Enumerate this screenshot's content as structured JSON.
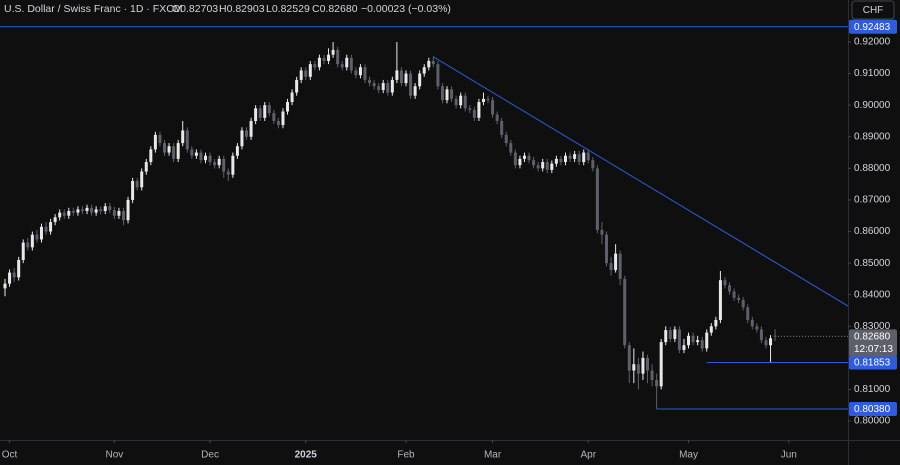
{
  "chart_data": {
    "type": "candlestick",
    "title": "U.S. Dollar / Swiss Franc · 1D · FXCM",
    "legend_ohlc": [
      "O0.82703",
      "H0.82903",
      "L0.82529",
      "C0.82680"
    ],
    "change": "−0.00023 (−0.03%)",
    "currency": "CHF",
    "countdown": "12:07:13",
    "last_price_label": "0.82680",
    "up_color": "#e8e8e8",
    "down_color": "#5d606b",
    "level_color": "#2f5be0",
    "xlim": [
      -1.1,
      185
    ],
    "ylim": [
      0.794,
      0.9333
    ],
    "xticks": [
      {
        "value": 1,
        "label": "Oct"
      },
      {
        "value": 24,
        "label": "Nov"
      },
      {
        "value": 45,
        "label": "Dec"
      },
      {
        "value": 66,
        "label": "2025"
      },
      {
        "value": 88,
        "label": "Feb"
      },
      {
        "value": 107,
        "label": "Mar"
      },
      {
        "value": 128,
        "label": "Apr"
      },
      {
        "value": 150,
        "label": "May"
      },
      {
        "value": 172,
        "label": "Jun"
      }
    ],
    "yticks": [
      {
        "value": 0.8,
        "label": "0.80000"
      },
      {
        "value": 0.81,
        "label": "0.81000"
      },
      {
        "value": 0.83,
        "label": "0.83000"
      },
      {
        "value": 0.84,
        "label": "0.84000"
      },
      {
        "value": 0.85,
        "label": "0.85000"
      },
      {
        "value": 0.86,
        "label": "0.86000"
      },
      {
        "value": 0.87,
        "label": "0.87000"
      },
      {
        "value": 0.88,
        "label": "0.88000"
      },
      {
        "value": 0.89,
        "label": "0.89000"
      },
      {
        "value": 0.9,
        "label": "0.90000"
      },
      {
        "value": 0.91,
        "label": "0.91000"
      },
      {
        "value": 0.92,
        "label": "0.92000"
      }
    ],
    "levels": [
      {
        "price": {
          "value": 0.92483,
          "label": "0.92483"
        }
      },
      {
        "price": {
          "value": 0.81853,
          "label": "0.81853"
        },
        "start": 154
      },
      {
        "price": {
          "value": 0.8038,
          "label": "0.80380"
        },
        "start": 143
      }
    ],
    "trendline": {
      "x": [
        94,
        185
      ],
      "y": [
        0.9153,
        0.8364
      ]
    },
    "open": [
      0.842,
      0.8435,
      0.847,
      0.8455,
      0.851,
      0.8565,
      0.855,
      0.859,
      0.8575,
      0.8615,
      0.86,
      0.863,
      0.8645,
      0.866,
      0.865,
      0.8665,
      0.866,
      0.867,
      0.8665,
      0.8675,
      0.866,
      0.867,
      0.8665,
      0.868,
      0.8668,
      0.865,
      0.8665,
      0.8636,
      0.87,
      0.876,
      0.874,
      0.879,
      0.882,
      0.886,
      0.8906,
      0.888,
      0.885,
      0.887,
      0.883,
      0.888,
      0.892,
      0.886,
      0.884,
      0.885,
      0.8826,
      0.884,
      0.882,
      0.881,
      0.883,
      0.879,
      0.878,
      0.884,
      0.887,
      0.892,
      0.89,
      0.895,
      0.899,
      0.896,
      0.9,
      0.8975,
      0.895,
      0.8937,
      0.898,
      0.901,
      0.904,
      0.908,
      0.911,
      0.909,
      0.913,
      0.912,
      0.915,
      0.914,
      0.916,
      0.9175,
      0.913,
      0.912,
      0.915,
      0.911,
      0.9095,
      0.912,
      0.908,
      0.907,
      0.906,
      0.9048,
      0.907,
      0.904,
      0.908,
      0.911,
      0.907,
      0.91,
      0.903,
      0.906,
      0.91,
      0.912,
      0.914,
      0.913,
      0.906,
      0.9016,
      0.905,
      0.902,
      0.9,
      0.903,
      0.899,
      0.8985,
      0.896,
      0.901,
      0.902,
      0.9016,
      0.897,
      0.895,
      0.8906,
      0.888,
      0.885,
      0.881,
      0.883,
      0.884,
      0.8826,
      0.881,
      0.88,
      0.882,
      0.8795,
      0.8815,
      0.883,
      0.882,
      0.884,
      0.883,
      0.8845,
      0.882,
      0.885,
      0.8826,
      0.88,
      0.8605,
      0.859,
      0.85,
      0.8478,
      0.853,
      0.845,
      0.824,
      0.816,
      0.818,
      0.815,
      0.82,
      0.816,
      0.813,
      0.811,
      0.825,
      0.8288,
      0.826,
      0.829,
      0.8225,
      0.824,
      0.827,
      0.825,
      0.8256,
      0.823,
      0.828,
      0.83,
      0.832,
      0.8446,
      0.843,
      0.841,
      0.839,
      0.8383,
      0.836,
      0.832,
      0.83,
      0.829,
      0.8256,
      0.824,
      0.82703
    ],
    "high": [
      0.845,
      0.848,
      0.8485,
      0.852,
      0.8575,
      0.858,
      0.86,
      0.8605,
      0.8625,
      0.863,
      0.864,
      0.8655,
      0.867,
      0.867,
      0.8675,
      0.8675,
      0.868,
      0.868,
      0.8685,
      0.8685,
      0.868,
      0.868,
      0.869,
      0.869,
      0.8678,
      0.8675,
      0.8675,
      0.871,
      0.877,
      0.877,
      0.88,
      0.883,
      0.887,
      0.8916,
      0.8916,
      0.889,
      0.888,
      0.888,
      0.889,
      0.895,
      0.893,
      0.887,
      0.886,
      0.886,
      0.885,
      0.885,
      0.883,
      0.884,
      0.884,
      0.88,
      0.885,
      0.888,
      0.893,
      0.893,
      0.896,
      0.9,
      0.9,
      0.901,
      0.901,
      0.8985,
      0.896,
      0.899,
      0.902,
      0.905,
      0.909,
      0.912,
      0.912,
      0.914,
      0.914,
      0.916,
      0.916,
      0.918,
      0.92,
      0.9185,
      0.914,
      0.916,
      0.916,
      0.912,
      0.913,
      0.913,
      0.909,
      0.908,
      0.907,
      0.908,
      0.908,
      0.909,
      0.92,
      0.912,
      0.911,
      0.911,
      0.907,
      0.911,
      0.913,
      0.915,
      0.9155,
      0.914,
      0.907,
      0.906,
      0.906,
      0.903,
      0.904,
      0.904,
      0.9,
      0.8995,
      0.902,
      0.904,
      0.903,
      0.9026,
      0.898,
      0.896,
      0.8916,
      0.889,
      0.886,
      0.884,
      0.885,
      0.885,
      0.8836,
      0.882,
      0.883,
      0.883,
      0.8825,
      0.884,
      0.884,
      0.885,
      0.885,
      0.8855,
      0.8855,
      0.886,
      0.886,
      0.8836,
      0.881,
      0.863,
      0.86,
      0.852,
      0.856,
      0.854,
      0.846,
      0.825,
      0.823,
      0.82,
      0.822,
      0.821,
      0.818,
      0.815,
      0.826,
      0.83,
      0.8298,
      0.83,
      0.83,
      0.826,
      0.828,
      0.828,
      0.827,
      0.8266,
      0.829,
      0.831,
      0.833,
      0.8475,
      0.8456,
      0.844,
      0.842,
      0.84,
      0.8393,
      0.837,
      0.833,
      0.831,
      0.83,
      0.8266,
      0.8272,
      0.82903
    ],
    "low": [
      0.8395,
      0.8425,
      0.844,
      0.8445,
      0.85,
      0.854,
      0.854,
      0.8565,
      0.8565,
      0.859,
      0.859,
      0.862,
      0.8635,
      0.864,
      0.864,
      0.865,
      0.865,
      0.8655,
      0.8655,
      0.865,
      0.865,
      0.8655,
      0.8655,
      0.8658,
      0.864,
      0.864,
      0.862,
      0.8626,
      0.869,
      0.873,
      0.873,
      0.878,
      0.881,
      0.885,
      0.887,
      0.884,
      0.884,
      0.882,
      0.882,
      0.887,
      0.885,
      0.883,
      0.883,
      0.8816,
      0.8816,
      0.881,
      0.88,
      0.88,
      0.877,
      0.876,
      0.877,
      0.883,
      0.886,
      0.889,
      0.889,
      0.894,
      0.895,
      0.895,
      0.8965,
      0.894,
      0.8927,
      0.8927,
      0.897,
      0.9,
      0.903,
      0.907,
      0.908,
      0.908,
      0.911,
      0.911,
      0.913,
      0.913,
      0.915,
      0.912,
      0.911,
      0.911,
      0.91,
      0.9085,
      0.9085,
      0.907,
      0.906,
      0.905,
      0.9038,
      0.9038,
      0.903,
      0.903,
      0.907,
      0.906,
      0.906,
      0.902,
      0.902,
      0.905,
      0.909,
      0.911,
      0.912,
      0.905,
      0.9006,
      0.9006,
      0.901,
      0.899,
      0.899,
      0.898,
      0.8975,
      0.895,
      0.895,
      0.9,
      0.9006,
      0.896,
      0.894,
      0.8896,
      0.887,
      0.884,
      0.88,
      0.88,
      0.882,
      0.8816,
      0.88,
      0.879,
      0.879,
      0.8785,
      0.8785,
      0.8805,
      0.881,
      0.881,
      0.882,
      0.882,
      0.881,
      0.881,
      0.8816,
      0.879,
      0.8595,
      0.856,
      0.849,
      0.846,
      0.847,
      0.843,
      0.823,
      0.812,
      0.812,
      0.81,
      0.813,
      0.812,
      0.811,
      0.8038,
      0.81,
      0.824,
      0.825,
      0.825,
      0.8215,
      0.8215,
      0.823,
      0.824,
      0.824,
      0.822,
      0.822,
      0.827,
      0.829,
      0.831,
      0.842,
      0.84,
      0.838,
      0.8373,
      0.835,
      0.831,
      0.829,
      0.828,
      0.8246,
      0.823,
      0.81853,
      0.82529
    ],
    "close": [
      0.8435,
      0.847,
      0.8455,
      0.851,
      0.8565,
      0.855,
      0.859,
      0.8575,
      0.8615,
      0.86,
      0.863,
      0.8645,
      0.866,
      0.865,
      0.8665,
      0.866,
      0.867,
      0.8665,
      0.8675,
      0.866,
      0.867,
      0.8665,
      0.868,
      0.8668,
      0.865,
      0.8665,
      0.8636,
      0.87,
      0.876,
      0.874,
      0.879,
      0.882,
      0.886,
      0.8906,
      0.888,
      0.885,
      0.887,
      0.883,
      0.888,
      0.892,
      0.886,
      0.884,
      0.885,
      0.8826,
      0.884,
      0.882,
      0.881,
      0.883,
      0.879,
      0.878,
      0.884,
      0.887,
      0.892,
      0.89,
      0.895,
      0.899,
      0.896,
      0.9,
      0.8975,
      0.895,
      0.8937,
      0.898,
      0.901,
      0.904,
      0.908,
      0.911,
      0.909,
      0.913,
      0.912,
      0.915,
      0.914,
      0.916,
      0.9175,
      0.913,
      0.912,
      0.915,
      0.911,
      0.9095,
      0.912,
      0.908,
      0.907,
      0.906,
      0.9048,
      0.907,
      0.904,
      0.908,
      0.911,
      0.907,
      0.91,
      0.903,
      0.906,
      0.91,
      0.912,
      0.914,
      0.913,
      0.906,
      0.9016,
      0.905,
      0.902,
      0.9,
      0.903,
      0.899,
      0.8985,
      0.896,
      0.901,
      0.902,
      0.9016,
      0.897,
      0.895,
      0.8906,
      0.888,
      0.885,
      0.881,
      0.883,
      0.884,
      0.8826,
      0.881,
      0.88,
      0.882,
      0.8795,
      0.8815,
      0.883,
      0.882,
      0.884,
      0.883,
      0.8845,
      0.882,
      0.885,
      0.8826,
      0.88,
      0.8605,
      0.859,
      0.85,
      0.8478,
      0.853,
      0.845,
      0.824,
      0.816,
      0.818,
      0.815,
      0.82,
      0.816,
      0.813,
      0.811,
      0.825,
      0.8288,
      0.826,
      0.829,
      0.8225,
      0.824,
      0.827,
      0.825,
      0.8256,
      0.823,
      0.828,
      0.83,
      0.832,
      0.8446,
      0.843,
      0.841,
      0.839,
      0.8383,
      0.836,
      0.832,
      0.83,
      0.829,
      0.8256,
      0.824,
      0.8262,
      0.8268
    ]
  }
}
